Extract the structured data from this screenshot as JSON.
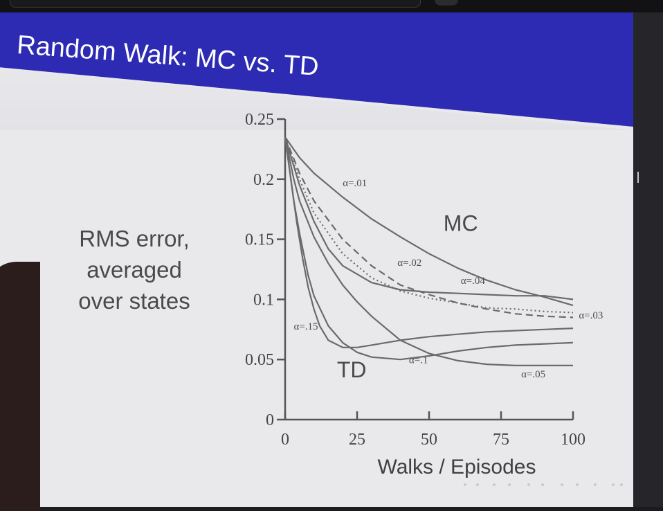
{
  "slide": {
    "title": "Random Walk: MC vs. TD",
    "y_caption_lines": [
      "RMS error,",
      "averaged",
      "over states"
    ]
  },
  "chart_data": {
    "type": "line",
    "title": "",
    "xlabel": "Walks / Episodes",
    "ylabel": "RMS error, averaged over states",
    "xlim": [
      0,
      100
    ],
    "ylim": [
      0,
      0.25
    ],
    "xticks": [
      0,
      25,
      50,
      75,
      100
    ],
    "yticks": [
      0,
      0.05,
      0.1,
      0.15,
      0.2,
      0.25
    ],
    "xtick_labels": [
      "0",
      "25",
      "50",
      "75",
      "100"
    ],
    "ytick_labels": [
      "0",
      "0.05",
      "0.1",
      "0.15",
      "0.2",
      "0.25"
    ],
    "group_labels": [
      {
        "text": "MC",
        "x": 55,
        "y": 0.157
      },
      {
        "text": "TD",
        "x": 18,
        "y": 0.035
      }
    ],
    "series": [
      {
        "name": "α=.01",
        "group": "MC",
        "style": "solid",
        "x": [
          0,
          5,
          10,
          20,
          30,
          40,
          50,
          60,
          70,
          80,
          90,
          100
        ],
        "y": [
          0.235,
          0.218,
          0.205,
          0.185,
          0.167,
          0.152,
          0.138,
          0.126,
          0.116,
          0.108,
          0.102,
          0.095
        ]
      },
      {
        "name": "α=.02",
        "group": "MC",
        "style": "dashed",
        "x": [
          0,
          5,
          10,
          20,
          30,
          40,
          50,
          60,
          70,
          80,
          90,
          100
        ],
        "y": [
          0.235,
          0.205,
          0.182,
          0.15,
          0.128,
          0.112,
          0.104,
          0.097,
          0.092,
          0.088,
          0.086,
          0.085
        ]
      },
      {
        "name": "α=.03",
        "group": "MC",
        "style": "dotted",
        "x": [
          0,
          5,
          10,
          20,
          30,
          40,
          50,
          60,
          70,
          80,
          90,
          100
        ],
        "y": [
          0.235,
          0.2,
          0.172,
          0.138,
          0.118,
          0.107,
          0.101,
          0.097,
          0.093,
          0.092,
          0.09,
          0.089
        ]
      },
      {
        "name": "α=.04",
        "group": "MC",
        "style": "solid",
        "x": [
          0,
          5,
          10,
          15,
          20,
          30,
          40,
          50,
          60,
          70,
          80,
          90,
          100
        ],
        "y": [
          0.235,
          0.195,
          0.165,
          0.142,
          0.128,
          0.114,
          0.108,
          0.106,
          0.105,
          0.104,
          0.103,
          0.103,
          0.1
        ]
      },
      {
        "name": "α=.05",
        "group": "TD",
        "style": "solid",
        "x": [
          0,
          3,
          5,
          10,
          15,
          20,
          25,
          30,
          40,
          50,
          60,
          70,
          80,
          90,
          100
        ],
        "y": [
          0.235,
          0.2,
          0.182,
          0.152,
          0.13,
          0.112,
          0.098,
          0.086,
          0.066,
          0.055,
          0.049,
          0.046,
          0.045,
          0.045,
          0.045
        ]
      },
      {
        "name": "α=.1",
        "group": "TD",
        "style": "solid",
        "x": [
          0,
          3,
          5,
          8,
          10,
          15,
          20,
          25,
          30,
          40,
          50,
          60,
          70,
          80,
          90,
          100
        ],
        "y": [
          0.235,
          0.182,
          0.155,
          0.12,
          0.103,
          0.078,
          0.064,
          0.056,
          0.052,
          0.05,
          0.053,
          0.057,
          0.06,
          0.062,
          0.063,
          0.064
        ]
      },
      {
        "name": "α=.15",
        "group": "TD",
        "style": "solid",
        "x": [
          0,
          2,
          4,
          6,
          8,
          10,
          12,
          15,
          20,
          25,
          30,
          40,
          50,
          60,
          70,
          80,
          90,
          100
        ],
        "y": [
          0.235,
          0.2,
          0.165,
          0.135,
          0.11,
          0.092,
          0.078,
          0.066,
          0.06,
          0.06,
          0.062,
          0.066,
          0.069,
          0.071,
          0.073,
          0.074,
          0.075,
          0.076
        ]
      }
    ],
    "annotations": [
      {
        "text": "α=.01",
        "x": 20,
        "y": 0.194
      },
      {
        "text": "α=.02",
        "x": 39,
        "y": 0.128
      },
      {
        "text": "α=.04",
        "x": 61,
        "y": 0.113
      },
      {
        "text": "α=.03",
        "x": 102,
        "y": 0.084
      },
      {
        "text": "α=.15",
        "x": 3,
        "y": 0.075
      },
      {
        "text": "α=.1",
        "x": 43,
        "y": 0.047
      },
      {
        "text": "α=.05",
        "x": 82,
        "y": 0.035
      }
    ],
    "grid": false,
    "legend": "none"
  }
}
